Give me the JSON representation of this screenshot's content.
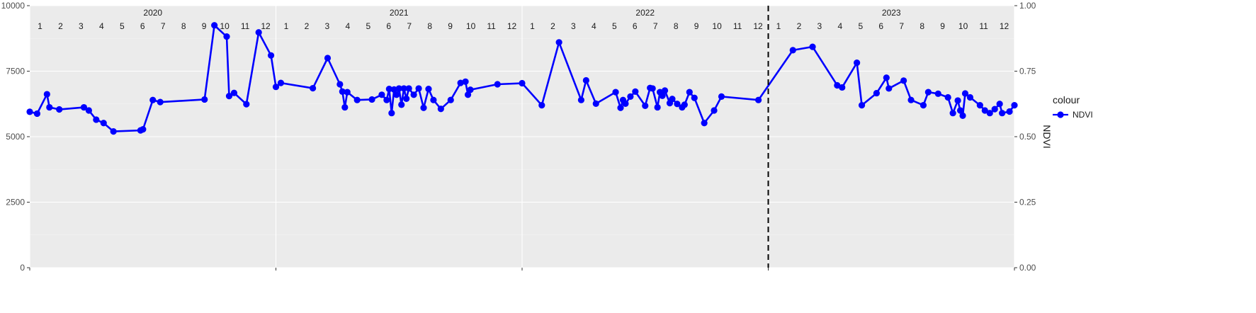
{
  "chart_data": {
    "type": "line",
    "x_unit": "decimal year",
    "xlim": [
      2020.0,
      2024.0
    ],
    "ylim_left": [
      0,
      10000
    ],
    "ylim_right": [
      0,
      1
    ],
    "ylabel_right": "NDVI",
    "grid": true,
    "legend_position": "right",
    "legend_title": "colour",
    "left_ticks": [
      "0",
      "2500",
      "5000",
      "7500",
      "10000"
    ],
    "left_tick_values": [
      0,
      2500,
      5000,
      7500,
      10000
    ],
    "right_ticks": [
      "0.00",
      "0.25",
      "0.50",
      "0.75",
      "1.00"
    ],
    "right_tick_values": [
      0,
      0.25,
      0.5,
      0.75,
      1.0
    ],
    "years": [
      {
        "label": "2020",
        "value": 2020
      },
      {
        "label": "2021",
        "value": 2021
      },
      {
        "label": "2022",
        "value": 2022
      },
      {
        "label": "2023",
        "value": 2023
      }
    ],
    "month_labels": [
      "1",
      "2",
      "3",
      "4",
      "5",
      "6",
      "7",
      "8",
      "9",
      "10",
      "11",
      "12"
    ],
    "vline_x": 2023.0,
    "series": [
      {
        "name": "NDVI",
        "color": "#0000ff",
        "axis": "right",
        "points": [
          [
            2020.0,
            0.595
          ],
          [
            2020.03,
            0.588
          ],
          [
            2020.07,
            0.662
          ],
          [
            2020.08,
            0.612
          ],
          [
            2020.12,
            0.604
          ],
          [
            2020.22,
            0.612
          ],
          [
            2020.24,
            0.6
          ],
          [
            2020.27,
            0.565
          ],
          [
            2020.3,
            0.552
          ],
          [
            2020.34,
            0.52
          ],
          [
            2020.45,
            0.524
          ],
          [
            2020.46,
            0.528
          ],
          [
            2020.5,
            0.64
          ],
          [
            2020.53,
            0.632
          ],
          [
            2020.71,
            0.642
          ],
          [
            2020.75,
            0.925
          ],
          [
            2020.8,
            0.882
          ],
          [
            2020.81,
            0.655
          ],
          [
            2020.83,
            0.667
          ],
          [
            2020.88,
            0.624
          ],
          [
            2020.93,
            0.898
          ],
          [
            2020.98,
            0.81
          ],
          [
            2021.0,
            0.69
          ],
          [
            2021.02,
            0.705
          ],
          [
            2021.15,
            0.685
          ],
          [
            2021.21,
            0.8
          ],
          [
            2021.26,
            0.7
          ],
          [
            2021.27,
            0.672
          ],
          [
            2021.28,
            0.612
          ],
          [
            2021.29,
            0.67
          ],
          [
            2021.33,
            0.64
          ],
          [
            2021.39,
            0.642
          ],
          [
            2021.43,
            0.66
          ],
          [
            2021.45,
            0.64
          ],
          [
            2021.46,
            0.682
          ],
          [
            2021.47,
            0.59
          ],
          [
            2021.48,
            0.68
          ],
          [
            2021.49,
            0.66
          ],
          [
            2021.5,
            0.684
          ],
          [
            2021.51,
            0.622
          ],
          [
            2021.52,
            0.684
          ],
          [
            2021.53,
            0.645
          ],
          [
            2021.54,
            0.684
          ],
          [
            2021.56,
            0.66
          ],
          [
            2021.58,
            0.684
          ],
          [
            2021.6,
            0.61
          ],
          [
            2021.62,
            0.682
          ],
          [
            2021.64,
            0.64
          ],
          [
            2021.67,
            0.606
          ],
          [
            2021.71,
            0.64
          ],
          [
            2021.75,
            0.705
          ],
          [
            2021.77,
            0.71
          ],
          [
            2021.78,
            0.66
          ],
          [
            2021.79,
            0.679
          ],
          [
            2021.9,
            0.7
          ],
          [
            2022.0,
            0.704
          ],
          [
            2022.08,
            0.62
          ],
          [
            2022.15,
            0.86
          ],
          [
            2022.24,
            0.64
          ],
          [
            2022.26,
            0.715
          ],
          [
            2022.3,
            0.626
          ],
          [
            2022.38,
            0.67
          ],
          [
            2022.4,
            0.61
          ],
          [
            2022.41,
            0.64
          ],
          [
            2022.42,
            0.626
          ],
          [
            2022.44,
            0.653
          ],
          [
            2022.46,
            0.672
          ],
          [
            2022.5,
            0.618
          ],
          [
            2022.52,
            0.686
          ],
          [
            2022.53,
            0.684
          ],
          [
            2022.55,
            0.612
          ],
          [
            2022.56,
            0.67
          ],
          [
            2022.57,
            0.656
          ],
          [
            2022.58,
            0.676
          ],
          [
            2022.6,
            0.628
          ],
          [
            2022.61,
            0.644
          ],
          [
            2022.63,
            0.625
          ],
          [
            2022.65,
            0.612
          ],
          [
            2022.66,
            0.622
          ],
          [
            2022.68,
            0.67
          ],
          [
            2022.7,
            0.648
          ],
          [
            2022.74,
            0.552
          ],
          [
            2022.78,
            0.6
          ],
          [
            2022.81,
            0.653
          ],
          [
            2022.96,
            0.64
          ],
          [
            2023.1,
            0.83
          ],
          [
            2023.18,
            0.843
          ],
          [
            2023.28,
            0.696
          ],
          [
            2023.3,
            0.688
          ],
          [
            2023.36,
            0.782
          ],
          [
            2023.38,
            0.62
          ],
          [
            2023.44,
            0.666
          ],
          [
            2023.48,
            0.725
          ],
          [
            2023.49,
            0.684
          ],
          [
            2023.55,
            0.714
          ],
          [
            2023.58,
            0.64
          ],
          [
            2023.63,
            0.62
          ],
          [
            2023.65,
            0.67
          ],
          [
            2023.69,
            0.664
          ],
          [
            2023.73,
            0.65
          ],
          [
            2023.75,
            0.59
          ],
          [
            2023.77,
            0.638
          ],
          [
            2023.78,
            0.6
          ],
          [
            2023.79,
            0.58
          ],
          [
            2023.8,
            0.665
          ],
          [
            2023.82,
            0.65
          ],
          [
            2023.86,
            0.62
          ],
          [
            2023.88,
            0.6
          ],
          [
            2023.9,
            0.59
          ],
          [
            2023.92,
            0.605
          ],
          [
            2023.94,
            0.625
          ],
          [
            2023.95,
            0.59
          ],
          [
            2023.98,
            0.596
          ],
          [
            2024.0,
            0.62
          ]
        ]
      }
    ]
  }
}
